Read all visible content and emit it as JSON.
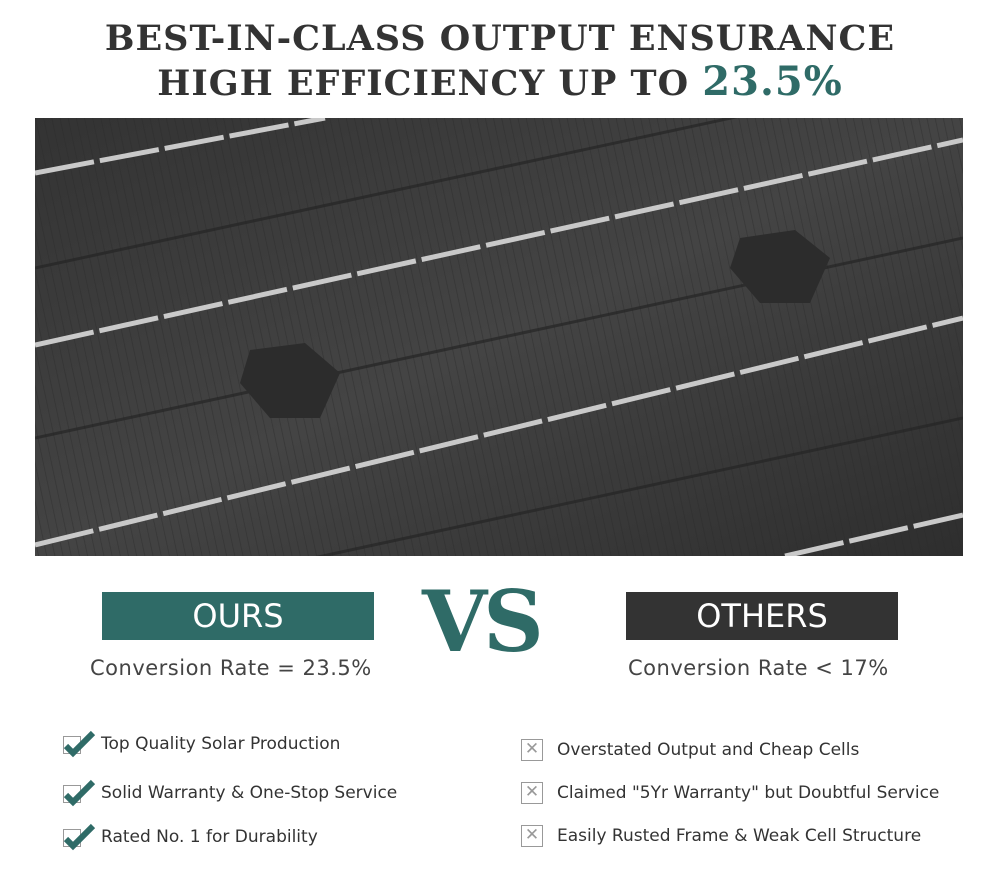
{
  "headline": {
    "line1": "BEST-IN-CLASS OUTPUT ENSURANCE",
    "line2_prefix": "HIGH EFFICIENCY UP TO ",
    "line2_value": "23.5%"
  },
  "colors": {
    "accent": "#2f6b67",
    "others": "#333333",
    "panel": "#3a3a3a"
  },
  "ours": {
    "label": "OURS",
    "rate": "Conversion Rate = 23.5%",
    "items": [
      "Top Quality Solar Production",
      "Solid Warranty & One-Stop Service",
      "Rated No. 1 for Durability"
    ],
    "icon": "checkmark-icon"
  },
  "vs": "VS",
  "others": {
    "label": "OTHERS",
    "rate": "Conversion Rate < 17%",
    "items": [
      "Overstated Output and Cheap Cells",
      "Claimed \"5Yr Warranty\" but Doubtful Service",
      "Easily Rusted Frame & Weak Cell Structure"
    ],
    "icon": "x-box-icon"
  }
}
